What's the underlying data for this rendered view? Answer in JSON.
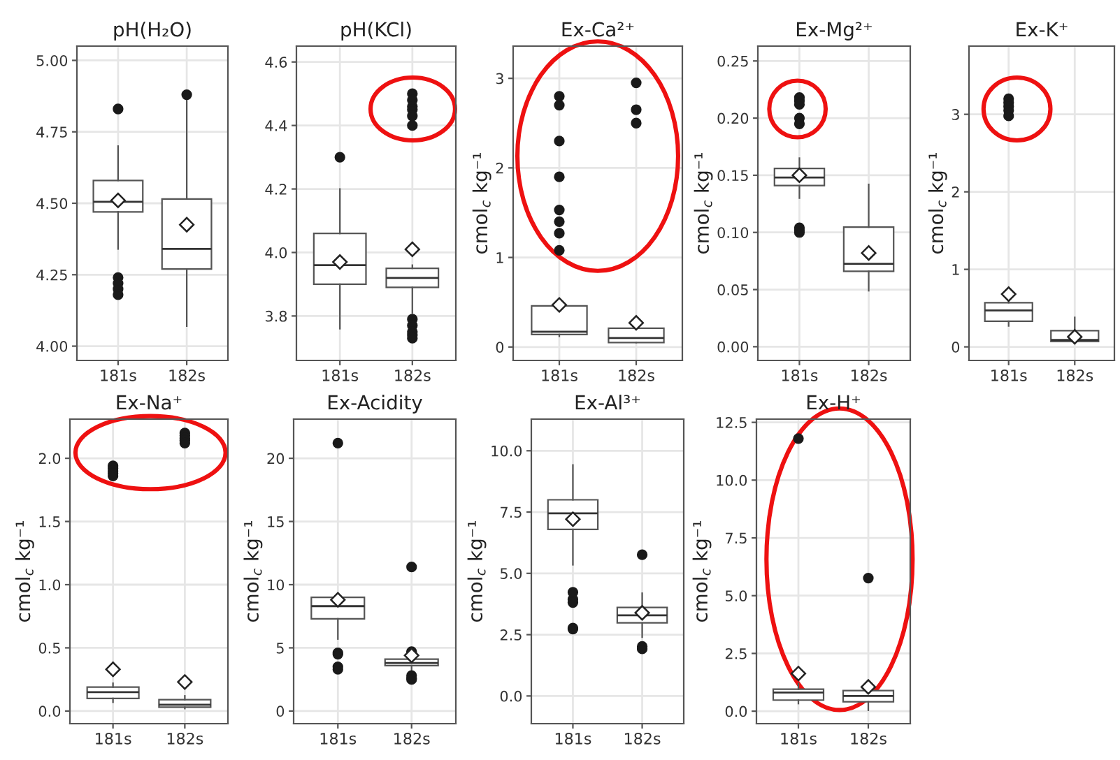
{
  "chart_data": [
    {
      "type": "box",
      "title": "pH(H₂O)",
      "categories": [
        "181s",
        "182s"
      ],
      "grid": true,
      "ylim": [
        3.95,
        5.05
      ],
      "yticks": [
        {
          "value": 4,
          "label": "4.00"
        },
        4.25,
        {
          "value": 4.5,
          "label": "4.50"
        },
        4.75,
        {
          "value": 5,
          "label": "5.00"
        }
      ],
      "boxes": [
        {
          "low": 4.34,
          "q1": 4.47,
          "median": 4.505,
          "q3": 4.58,
          "high": 4.7,
          "mean": 4.51,
          "outliers": [
            4.83,
            4.24,
            4.22,
            4.2,
            4.18
          ]
        },
        {
          "low": 4.07,
          "q1": 4.27,
          "median": 4.34,
          "q3": 4.515,
          "high": 4.88,
          "mean": 4.425,
          "outliers": [
            4.88
          ]
        }
      ]
    },
    {
      "type": "box",
      "title": "pH(KCl)",
      "categories": [
        "181s",
        "182s"
      ],
      "grid": true,
      "ylim": [
        3.66,
        4.65
      ],
      "yticks": [
        3.8,
        {
          "value": 4,
          "label": "4.0"
        },
        4.2,
        4.4,
        4.6
      ],
      "boxes": [
        {
          "low": 3.76,
          "q1": 3.9,
          "median": 3.96,
          "q3": 4.06,
          "high": 4.2,
          "mean": 3.97,
          "outliers": [
            4.3
          ]
        },
        {
          "low": 3.81,
          "q1": 3.89,
          "median": 3.92,
          "q3": 3.95,
          "high": 3.96,
          "mean": 4.01,
          "outliers": [
            4.5,
            4.48,
            4.46,
            4.45,
            4.43,
            4.4,
            3.79,
            3.77,
            3.75,
            3.74,
            3.73
          ]
        }
      ]
    },
    {
      "type": "box",
      "title": "Ex-Ca²⁺",
      "ylabel": "cmol$_{c}$ kg⁻¹",
      "categories": [
        "181s",
        "182s"
      ],
      "grid": true,
      "ylim": [
        -0.15,
        3.36
      ],
      "yticks": [
        0,
        1,
        2,
        3
      ],
      "boxes": [
        {
          "low": 0.12,
          "q1": 0.14,
          "median": 0.17,
          "q3": 0.46,
          "high": 0.46,
          "mean": 0.47,
          "outliers": [
            2.8,
            2.7,
            2.3,
            1.9,
            1.53,
            1.4,
            1.27,
            1.08
          ]
        },
        {
          "low": 0.05,
          "q1": 0.05,
          "median": 0.1,
          "q3": 0.21,
          "high": 0.21,
          "mean": 0.27,
          "outliers": [
            2.95,
            2.65,
            2.5
          ]
        }
      ]
    },
    {
      "type": "box",
      "title": "Ex-Mg²⁺",
      "ylabel": "cmol$_{c}$ kg⁻¹",
      "categories": [
        "181s",
        "182s"
      ],
      "grid": true,
      "ylim": [
        -0.012,
        0.263
      ],
      "yticks": [
        {
          "value": 0,
          "label": "0.00"
        },
        0.05,
        {
          "value": 0.1,
          "label": "0.10"
        },
        0.15,
        {
          "value": 0.2,
          "label": "0.20"
        },
        0.25
      ],
      "boxes": [
        {
          "low": 0.13,
          "q1": 0.141,
          "median": 0.148,
          "q3": 0.156,
          "high": 0.165,
          "mean": 0.15,
          "outliers": [
            0.218,
            0.215,
            0.212,
            0.2,
            0.195,
            0.104,
            0.102,
            0.1
          ]
        },
        {
          "low": 0.049,
          "q1": 0.066,
          "median": 0.0725,
          "q3": 0.1046,
          "high": 0.142,
          "mean": 0.082
        }
      ]
    },
    {
      "type": "box",
      "title": "Ex-K⁺",
      "ylabel": "cmol$_{c}$ kg⁻¹",
      "categories": [
        "181s",
        "182s"
      ],
      "grid": true,
      "ylim": [
        -0.175,
        3.88
      ],
      "yticks": [
        0,
        1,
        2,
        3
      ],
      "boxes": [
        {
          "low": 0.27,
          "q1": 0.33,
          "median": 0.47,
          "q3": 0.57,
          "high": 0.6,
          "mean": 0.68,
          "outliers": [
            3.2,
            3.15,
            3.1,
            3.05,
            2.98
          ]
        },
        {
          "low": 0.05,
          "q1": 0.07,
          "median": 0.09,
          "q3": 0.21,
          "high": 0.38,
          "mean": 0.13
        }
      ]
    },
    {
      "type": "box",
      "title": "Ex-Na⁺",
      "ylabel": "cmol$_{c}$ kg⁻¹",
      "categories": [
        "181s",
        "182s"
      ],
      "grid": true,
      "ylim": [
        -0.1,
        2.31
      ],
      "yticks": [
        {
          "value": 0,
          "label": "0.0"
        },
        0.5,
        {
          "value": 1,
          "label": "1.0"
        },
        1.5,
        {
          "value": 2,
          "label": "2.0"
        }
      ],
      "boxes": [
        {
          "low": 0.07,
          "q1": 0.1,
          "median": 0.15,
          "q3": 0.19,
          "high": 0.22,
          "mean": 0.33,
          "outliers": [
            1.94,
            1.92,
            1.9,
            1.88,
            1.86
          ]
        },
        {
          "low": 0.02,
          "q1": 0.03,
          "median": 0.05,
          "q3": 0.09,
          "high": 0.12,
          "mean": 0.23,
          "outliers": [
            2.2,
            2.18,
            2.16,
            2.14,
            2.12
          ]
        }
      ]
    },
    {
      "type": "box",
      "title": "Ex-Acidity",
      "ylabel": "cmol$_{c}$ kg⁻¹",
      "categories": [
        "181s",
        "182s"
      ],
      "grid": true,
      "ylim": [
        -1,
        23.1
      ],
      "yticks": [
        0,
        5,
        10,
        15,
        20
      ],
      "boxes": [
        {
          "low": 5.7,
          "q1": 7.3,
          "median": 8.3,
          "q3": 9,
          "high": 9,
          "mean": 8.8,
          "outliers": [
            21.2,
            4.6,
            4.5,
            3.5,
            3.3
          ]
        },
        {
          "low": 3,
          "q1": 3.6,
          "median": 3.8,
          "q3": 4.1,
          "high": 4.2,
          "mean": 4.4,
          "outliers": [
            11.4,
            4.7,
            4.6,
            2.8,
            2.6,
            2.5
          ]
        }
      ]
    },
    {
      "type": "box",
      "title": "Ex-Al³⁺",
      "ylabel": "cmol$_{c}$ kg⁻¹",
      "categories": [
        "181s",
        "182s"
      ],
      "grid": true,
      "ylim": [
        -1.13,
        11.29
      ],
      "yticks": [
        {
          "value": 0,
          "label": "0.0"
        },
        2.5,
        {
          "value": 5,
          "label": "5.0"
        },
        7.5,
        {
          "value": 10,
          "label": "10.0"
        }
      ],
      "boxes": [
        {
          "low": 5.35,
          "q1": 6.79,
          "median": 7.45,
          "q3": 8,
          "high": 9.42,
          "mean": 7.21,
          "outliers": [
            4.23,
            3.94,
            3.81,
            2.77,
            2.73
          ]
        },
        {
          "low": 2.4,
          "q1": 2.98,
          "median": 3.29,
          "q3": 3.61,
          "high": 4.19,
          "mean": 3.39,
          "outliers": [
            5.76,
            2.02,
            1.92
          ]
        }
      ]
    },
    {
      "type": "box",
      "title": "Ex-H⁺",
      "ylabel": "cmol$_{c}$ kg⁻¹",
      "categories": [
        "181s",
        "182s"
      ],
      "grid": true,
      "ylim": [
        -0.54,
        12.64
      ],
      "yticks": [
        {
          "value": 0,
          "label": "0.0"
        },
        2.5,
        {
          "value": 5,
          "label": "5.0"
        },
        7.5,
        {
          "value": 10,
          "label": "10.0"
        },
        12.5
      ],
      "boxes": [
        {
          "low": 0.33,
          "q1": 0.48,
          "median": 0.81,
          "q3": 0.95,
          "high": 1.2,
          "mean": 1.63,
          "outliers": [
            11.8
          ]
        },
        {
          "low": 0.04,
          "q1": 0.41,
          "median": 0.66,
          "q3": 0.89,
          "high": 1.0,
          "mean": 1.05,
          "outliers": [
            5.76
          ]
        }
      ]
    }
  ]
}
